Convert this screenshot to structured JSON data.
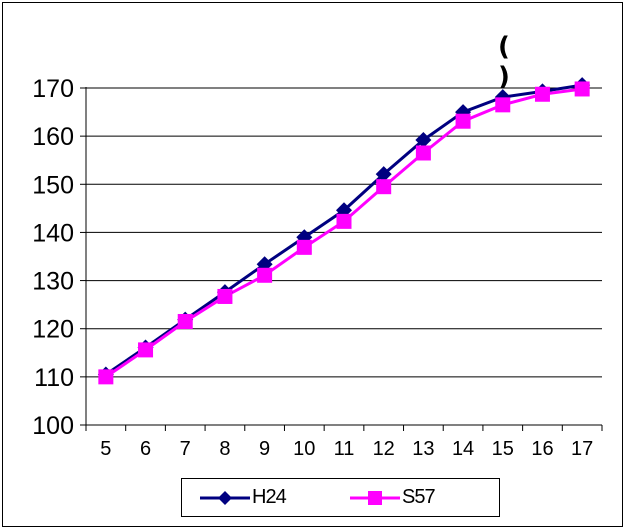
{
  "unit_label": "(   )",
  "chart_data": {
    "type": "line",
    "title": "",
    "xlabel": "",
    "ylabel": "",
    "categories": [
      "5",
      "6",
      "7",
      "8",
      "9",
      "10",
      "11",
      "12",
      "13",
      "14",
      "15",
      "16",
      "17"
    ],
    "ylim": [
      100,
      170
    ],
    "yticks": [
      100,
      110,
      120,
      130,
      140,
      150,
      160,
      170
    ],
    "grid": true,
    "legend_position": "bottom",
    "series": [
      {
        "name": "H24",
        "color": "#000080",
        "marker": "diamond",
        "values": [
          110.5,
          116.1,
          121.9,
          127.6,
          133.4,
          139.0,
          144.6,
          152.1,
          159.2,
          165.0,
          168.1,
          169.3,
          170.6
        ]
      },
      {
        "name": "S57",
        "color": "#ff00ff",
        "marker": "square",
        "values": [
          110.0,
          115.6,
          121.5,
          126.7,
          131.1,
          136.9,
          142.3,
          149.5,
          156.5,
          163.1,
          166.5,
          168.7,
          169.8
        ]
      }
    ]
  }
}
